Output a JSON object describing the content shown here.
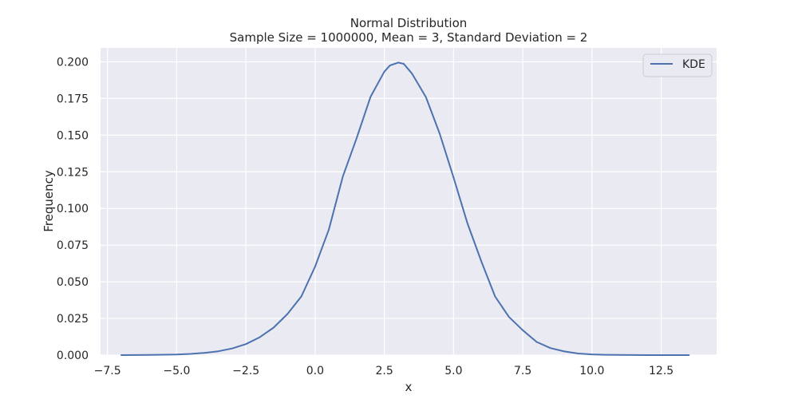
{
  "chart_data": {
    "type": "line",
    "title": "Normal Distribution",
    "subtitle": "Sample Size = 1000000, Mean = 3, Standard Deviation = 2",
    "xlabel": "x",
    "ylabel": "Frequency",
    "xlim": [
      -7.75,
      14.5
    ],
    "ylim": [
      0,
      0.2095
    ],
    "xticks": [
      -7.5,
      -5.0,
      -2.5,
      0.0,
      2.5,
      5.0,
      7.5,
      10.0,
      12.5
    ],
    "xtick_labels": [
      "−7.5",
      "−5.0",
      "−2.5",
      "0.0",
      "2.5",
      "5.0",
      "7.5",
      "10.0",
      "12.5"
    ],
    "yticks": [
      0.0,
      0.025,
      0.05,
      0.075,
      0.1,
      0.125,
      0.15,
      0.175,
      0.2
    ],
    "ytick_labels": [
      "0.000",
      "0.025",
      "0.050",
      "0.075",
      "0.100",
      "0.125",
      "0.150",
      "0.175",
      "0.200"
    ],
    "grid": true,
    "legend_position": "top-right",
    "series": [
      {
        "name": "KDE",
        "color": "#4c72b0",
        "x": [
          -7.0,
          -6.0,
          -5.0,
          -4.5,
          -4.0,
          -3.5,
          -3.0,
          -2.5,
          -2.0,
          -1.5,
          -1.0,
          -0.5,
          0.0,
          0.5,
          1.0,
          1.5,
          2.0,
          2.5,
          2.7,
          3.0,
          3.2,
          3.5,
          4.0,
          4.5,
          5.0,
          5.5,
          6.0,
          6.5,
          7.0,
          7.5,
          8.0,
          8.5,
          9.0,
          9.5,
          10.0,
          10.5,
          11.0,
          12.0,
          13.5
        ],
        "y": [
          0.0,
          0.0001,
          0.0004,
          0.0008,
          0.0015,
          0.0026,
          0.0045,
          0.0075,
          0.0122,
          0.0188,
          0.028,
          0.04,
          0.0604,
          0.0858,
          0.1218,
          0.1479,
          0.1761,
          0.1933,
          0.1975,
          0.1995,
          0.1986,
          0.192,
          0.176,
          0.151,
          0.121,
          0.09,
          0.064,
          0.04,
          0.026,
          0.017,
          0.009,
          0.0048,
          0.0025,
          0.0011,
          0.0005,
          0.0002,
          0.0001,
          0.0,
          0.0
        ]
      }
    ]
  }
}
